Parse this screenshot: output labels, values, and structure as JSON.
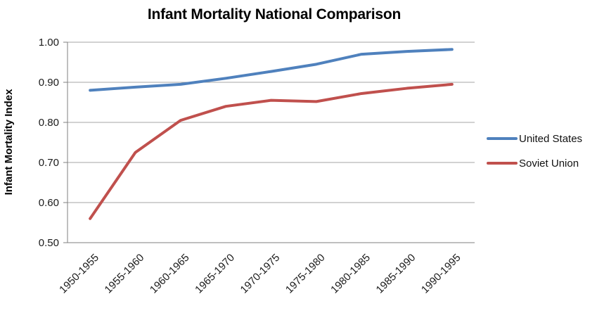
{
  "chart_data": {
    "type": "line",
    "title": "Infant Mortality National Comparison",
    "ylabel": "Infant Mortality Index",
    "xlabel": "",
    "ylim": [
      0.5,
      1.0
    ],
    "ytick_step": 0.1,
    "yticks": [
      "1.00",
      "0.90",
      "0.80",
      "0.70",
      "0.60",
      "0.50"
    ],
    "grid": true,
    "legend_position": "right",
    "categories": [
      "1950-1955",
      "1955-1960",
      "1960-1965",
      "1965-1970",
      "1970-1975",
      "1975-1980",
      "1980-1985",
      "1985-1990",
      "1990-1995"
    ],
    "series": [
      {
        "name": "United States",
        "color": "#4F81BD",
        "values": [
          0.88,
          0.888,
          0.895,
          0.91,
          0.927,
          0.945,
          0.97,
          0.977,
          0.982
        ]
      },
      {
        "name": "Soviet Union",
        "color": "#C0504D",
        "values": [
          0.56,
          0.725,
          0.805,
          0.84,
          0.855,
          0.852,
          0.872,
          0.885,
          0.895
        ]
      }
    ]
  },
  "colors": {
    "gridline": "#A6A6A6",
    "axis": "#7F7F7F",
    "tick_text": "#1A1A1A"
  }
}
